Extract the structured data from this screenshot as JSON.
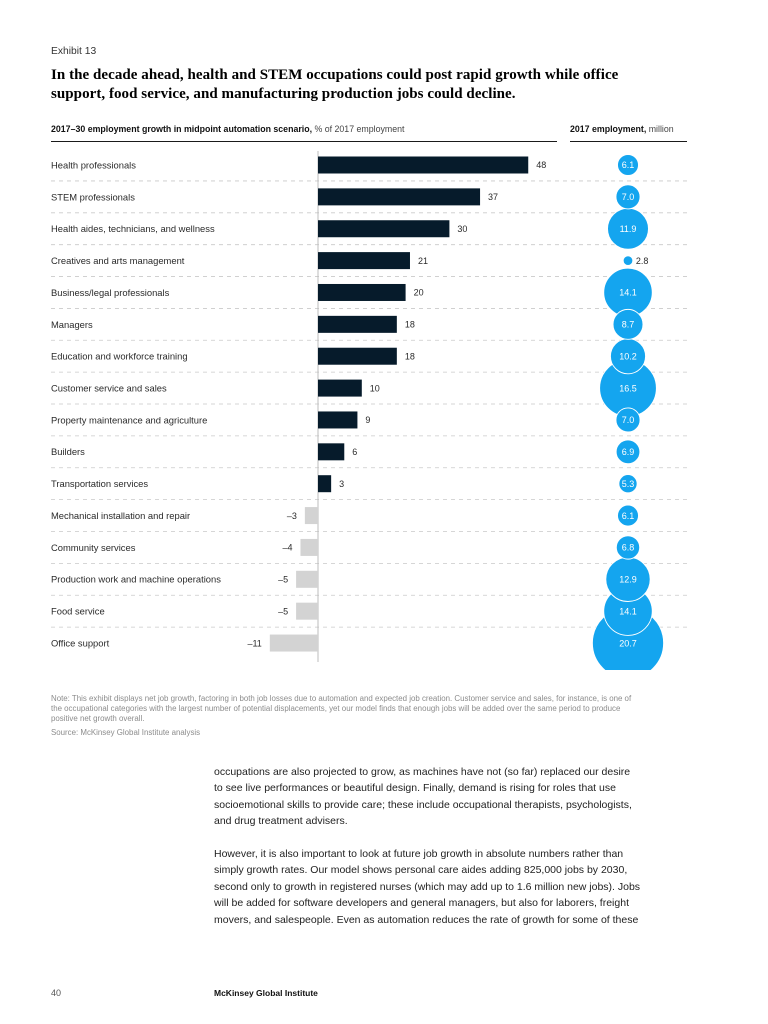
{
  "page": {
    "exhibit_label": "Exhibit 13",
    "title_lines": [
      "In the decade ahead, health and STEM occupations could post rapid growth while office",
      "support, food service, and manufacturing production jobs could decline."
    ],
    "footer": {
      "page_number": "40",
      "publisher": "McKinsey Global Institute"
    }
  },
  "chart_headers": {
    "left_bold": "2017–30 employment growth in midpoint automation scenario,",
    "left_normal": " % of 2017 employment",
    "right_bold": "2017 employment,",
    "right_normal": " million"
  },
  "note": {
    "lines": [
      "Note: This exhibit displays net job growth, factoring in both job losses due to automation and expected job creation. Customer service and sales, for instance, is one of",
      "the occupational categories with the largest number of potential displacements, yet our model finds that enough jobs will be added over the same period to produce",
      "positive net growth overall."
    ],
    "source": "Source: McKinsey Global Institute analysis"
  },
  "body": {
    "paragraphs": [
      {
        "lines": [
          "occupations are also projected to grow, as machines have not (so far) replaced our desire",
          "to see live performances or beautiful design. Finally, demand is rising for roles that use",
          "socioemotional skills to provide care; these include occupational therapists, psychologists,",
          "and drug treatment advisers."
        ]
      },
      {
        "lines": [
          "However, it is also important to look at future job growth in absolute numbers rather than",
          "simply growth rates. Our model shows personal care aides adding 825,000 jobs by 2030,",
          "second only to growth in registered nurses (which may add up to 1.6 million new jobs). Jobs",
          "will be added for software developers and general managers, but also for laborers, freight",
          "movers, and salespeople. Even as automation reduces the rate of growth for some of these"
        ]
      }
    ]
  },
  "chart_data": {
    "type": "bar",
    "orientation": "horizontal",
    "title": "2017–30 employment growth in midpoint automation scenario, % of 2017 employment",
    "xlabel": "",
    "ylabel": "",
    "xlim": [
      -11,
      48
    ],
    "grid": "dashed row separators",
    "legend": "none",
    "categories": [
      "Health professionals",
      "STEM professionals",
      "Health aides, technicians, and wellness",
      "Creatives and arts management",
      "Business/legal professionals",
      "Managers",
      "Education and workforce training",
      "Customer service and sales",
      "Property maintenance and agriculture",
      "Builders",
      "Transportation services",
      "Mechanical installation and repair",
      "Community services",
      "Production work and machine operations",
      "Food service",
      "Office support"
    ],
    "series": [
      {
        "name": "2017–30 employment growth, % of 2017 employment",
        "mark": "bar",
        "values": [
          48,
          37,
          30,
          21,
          20,
          18,
          18,
          10,
          9,
          6,
          3,
          -3,
          -4,
          -5,
          -5,
          -11
        ],
        "labels": [
          "48",
          "37",
          "30",
          "21",
          "20",
          "18",
          "18",
          "10",
          "9",
          "6",
          "3",
          "–3",
          "–4",
          "–5",
          "–5",
          "–11"
        ]
      },
      {
        "name": "2017 employment, million",
        "mark": "bubble",
        "values": [
          6.1,
          7.0,
          11.9,
          2.8,
          14.1,
          8.7,
          10.2,
          16.5,
          7.0,
          6.9,
          5.3,
          6.1,
          6.8,
          12.9,
          14.1,
          20.7
        ],
        "labels": [
          "6.1",
          "7.0",
          "11.9",
          "2.8",
          "14.1",
          "8.7",
          "10.2",
          "16.5",
          "7.0",
          "6.9",
          "5.3",
          "6.1",
          "6.8",
          "12.9",
          "14.1",
          "20.7"
        ]
      }
    ],
    "colors": {
      "positive_bar": "#061b2b",
      "negative_bar": "#d3d3d3",
      "bubble": "#14a5ef",
      "bubble_label": "#ffffff",
      "text": "#2a2a2a",
      "separator": "#c9c9c9",
      "axis": "#bdbdbd"
    }
  }
}
